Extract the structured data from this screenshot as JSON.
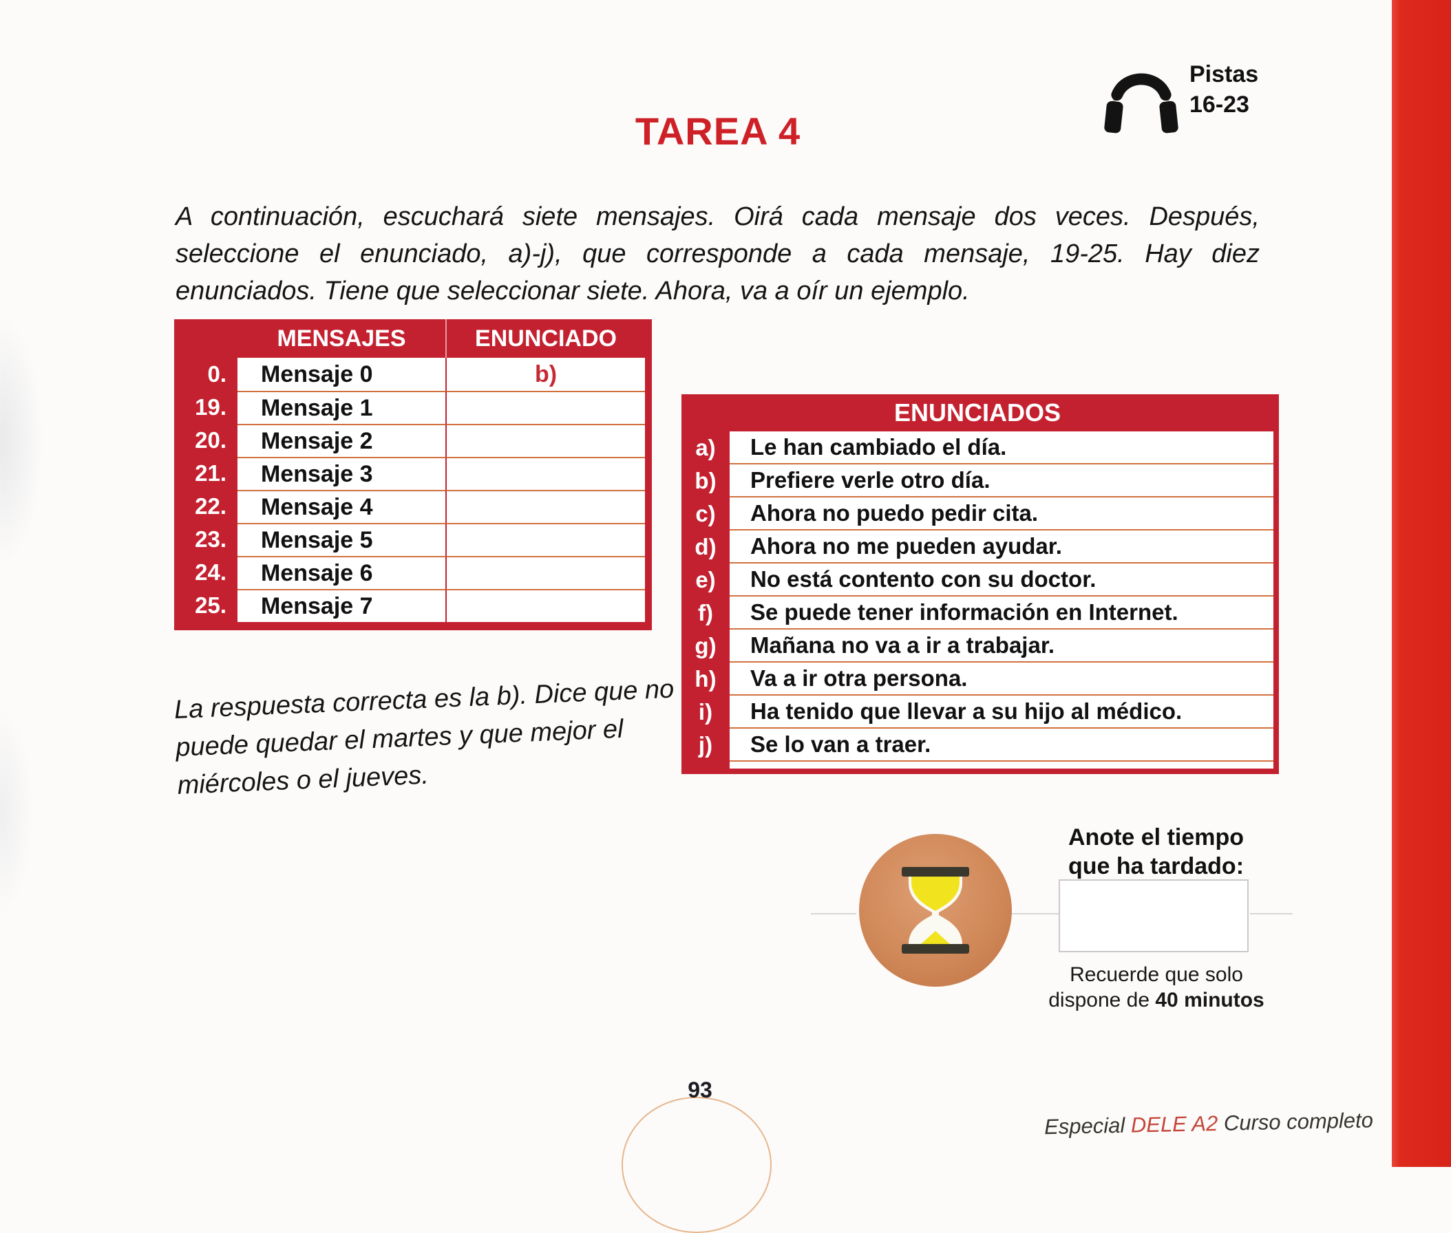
{
  "page": {
    "title": "TAREA 4",
    "audio": {
      "line1": "Pistas",
      "line2": "16-23"
    },
    "instructions": "A continuación, escuchará siete mensajes. Oirá cada mensaje dos veces. Después, seleccione el enunciado, a)-j), que corresponde a cada mensaje, 19-25. Hay diez enunciados. Tiene que seleccionar siete. Ahora, va a oír un ejemplo.",
    "example_note": "La respuesta correcta es la b). Dice que no puede quedar el martes y que mejor el miércoles o el jueves.",
    "page_number": "93",
    "footer": {
      "prefix": "Especial ",
      "highlight": "DELE A2",
      "suffix": " Curso completo"
    }
  },
  "messages_table": {
    "headers": {
      "messages": "MENSAJES",
      "statement": "ENUNCIADO"
    },
    "rows": [
      {
        "num": "0.",
        "label": "Mensaje 0",
        "answer": "b)"
      },
      {
        "num": "19.",
        "label": "Mensaje 1",
        "answer": ""
      },
      {
        "num": "20.",
        "label": "Mensaje 2",
        "answer": ""
      },
      {
        "num": "21.",
        "label": "Mensaje 3",
        "answer": ""
      },
      {
        "num": "22.",
        "label": "Mensaje 4",
        "answer": ""
      },
      {
        "num": "23.",
        "label": "Mensaje 5",
        "answer": ""
      },
      {
        "num": "24.",
        "label": "Mensaje 6",
        "answer": ""
      },
      {
        "num": "25.",
        "label": "Mensaje 7",
        "answer": ""
      }
    ]
  },
  "statements_table": {
    "header": "ENUNCIADOS",
    "rows": [
      {
        "letter": "a)",
        "text": "Le han cambiado el día."
      },
      {
        "letter": "b)",
        "text": "Prefiere verle otro día."
      },
      {
        "letter": "c)",
        "text": "Ahora no puedo pedir cita."
      },
      {
        "letter": "d)",
        "text": "Ahora no me pueden ayudar."
      },
      {
        "letter": "e)",
        "text": "No está contento con su doctor."
      },
      {
        "letter": "f)",
        "text": "Se puede tener información en Internet."
      },
      {
        "letter": "g)",
        "text": "Mañana no va a ir a trabajar."
      },
      {
        "letter": "h)",
        "text": "Va a ir otra persona."
      },
      {
        "letter": "i)",
        "text": "Ha tenido que llevar a su hijo al médico."
      },
      {
        "letter": "j)",
        "text": "Se lo van a traer."
      }
    ]
  },
  "timer": {
    "prompt_line1": "Anote el tiempo",
    "prompt_line2": "que ha tardado:",
    "input_value": "",
    "reminder_line1": "Recuerde que solo",
    "reminder_line2_pre": "dispone de ",
    "reminder_line2_bold": "40 minutos"
  },
  "colors": {
    "table_red": "#c42130",
    "title_red": "#ce2127",
    "edge_bar_red": "#de2a1d",
    "answer_red": "#c62a33",
    "separator_orange": "#d2703d",
    "circle_orange": "#cf8656",
    "sand_yellow": "#f2e31f"
  }
}
